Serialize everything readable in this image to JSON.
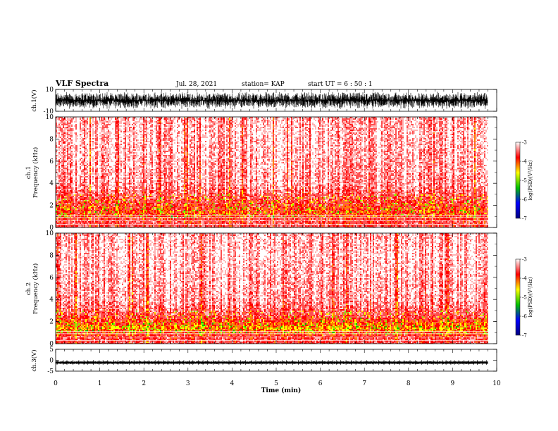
{
  "header": {
    "title": "VLF Spectra",
    "date": "Jul. 28, 2021",
    "station": "station= KAP",
    "start_ut": "start UT =  6 : 50 : 1"
  },
  "chart_data": [
    {
      "type": "line",
      "panel": "ch1-waveform",
      "ylabel": "ch.1(V)",
      "ylim": [
        -10,
        10
      ],
      "yticks": [
        "10",
        "-10"
      ],
      "xlim": [
        0,
        10
      ],
      "series_color": "#000000",
      "note_values": "dense noisy waveform spanning approx -8 to 8 V"
    },
    {
      "type": "heatmap",
      "panel": "ch1-spectrogram",
      "ylabel": "ch.1\nFrequency (kHz)",
      "ylim": [
        0,
        10
      ],
      "yticks": [
        "0",
        "2",
        "4",
        "6",
        "8",
        "10"
      ],
      "xlim": [
        0,
        9.8
      ],
      "colorbar": {
        "label": "log(PSD)(V²/Hz)",
        "range": [
          -7,
          -3
        ],
        "ticks": [
          "-3",
          "-4",
          "-5",
          "-6",
          "-7"
        ],
        "colors": [
          "#000080",
          "#0000ff",
          "#00c000",
          "#ffff00",
          "#ff0000",
          "#ffffff"
        ]
      },
      "intensity_profile": [
        {
          "freq_khz": 0.5,
          "level": -3.6
        },
        {
          "freq_khz": 1.5,
          "level": -3.8
        },
        {
          "freq_khz": 2.5,
          "level": -3.6
        },
        {
          "freq_khz": 4,
          "level": -3.35
        },
        {
          "freq_khz": 6,
          "level": -3.3
        },
        {
          "freq_khz": 8,
          "level": -3.25
        },
        {
          "freq_khz": 10,
          "level": -3.3
        }
      ]
    },
    {
      "type": "heatmap",
      "panel": "ch2-spectrogram",
      "ylabel": "ch.2\nFrequency (kHz)",
      "ylim": [
        0,
        10
      ],
      "yticks": [
        "0",
        "2",
        "4",
        "6",
        "8",
        "10"
      ],
      "xlim": [
        0,
        9.8
      ],
      "colorbar": {
        "label": "log(PSD)(V²/Hz)",
        "range": [
          -7,
          -3
        ],
        "ticks": [
          "-3",
          "-4",
          "-5",
          "-6",
          "-7"
        ],
        "colors": [
          "#000080",
          "#0000ff",
          "#00c000",
          "#ffff00",
          "#ff0000",
          "#ffffff"
        ]
      },
      "intensity_profile": [
        {
          "freq_khz": 0.5,
          "level": -3.6
        },
        {
          "freq_khz": 1.5,
          "level": -4.0
        },
        {
          "freq_khz": 2.5,
          "level": -3.6
        },
        {
          "freq_khz": 4,
          "level": -3.35
        },
        {
          "freq_khz": 6,
          "level": -3.3
        },
        {
          "freq_khz": 8,
          "level": -3.25
        },
        {
          "freq_khz": 10,
          "level": -3.3
        }
      ]
    },
    {
      "type": "line",
      "panel": "ch3-waveform",
      "ylabel": "ch.3(V)",
      "ylim": [
        -5,
        5
      ],
      "yticks": [
        "5",
        "0",
        "-5"
      ],
      "xlim": [
        0,
        9.8
      ],
      "series_color": "#000000",
      "note_values": "narrow band near -1 V with periodic spikes"
    }
  ],
  "xaxis": {
    "label": "Time (min)",
    "ticks": [
      "0",
      "1",
      "2",
      "3",
      "4",
      "5",
      "6",
      "7",
      "8",
      "9",
      "10"
    ],
    "range": [
      0,
      10
    ]
  }
}
